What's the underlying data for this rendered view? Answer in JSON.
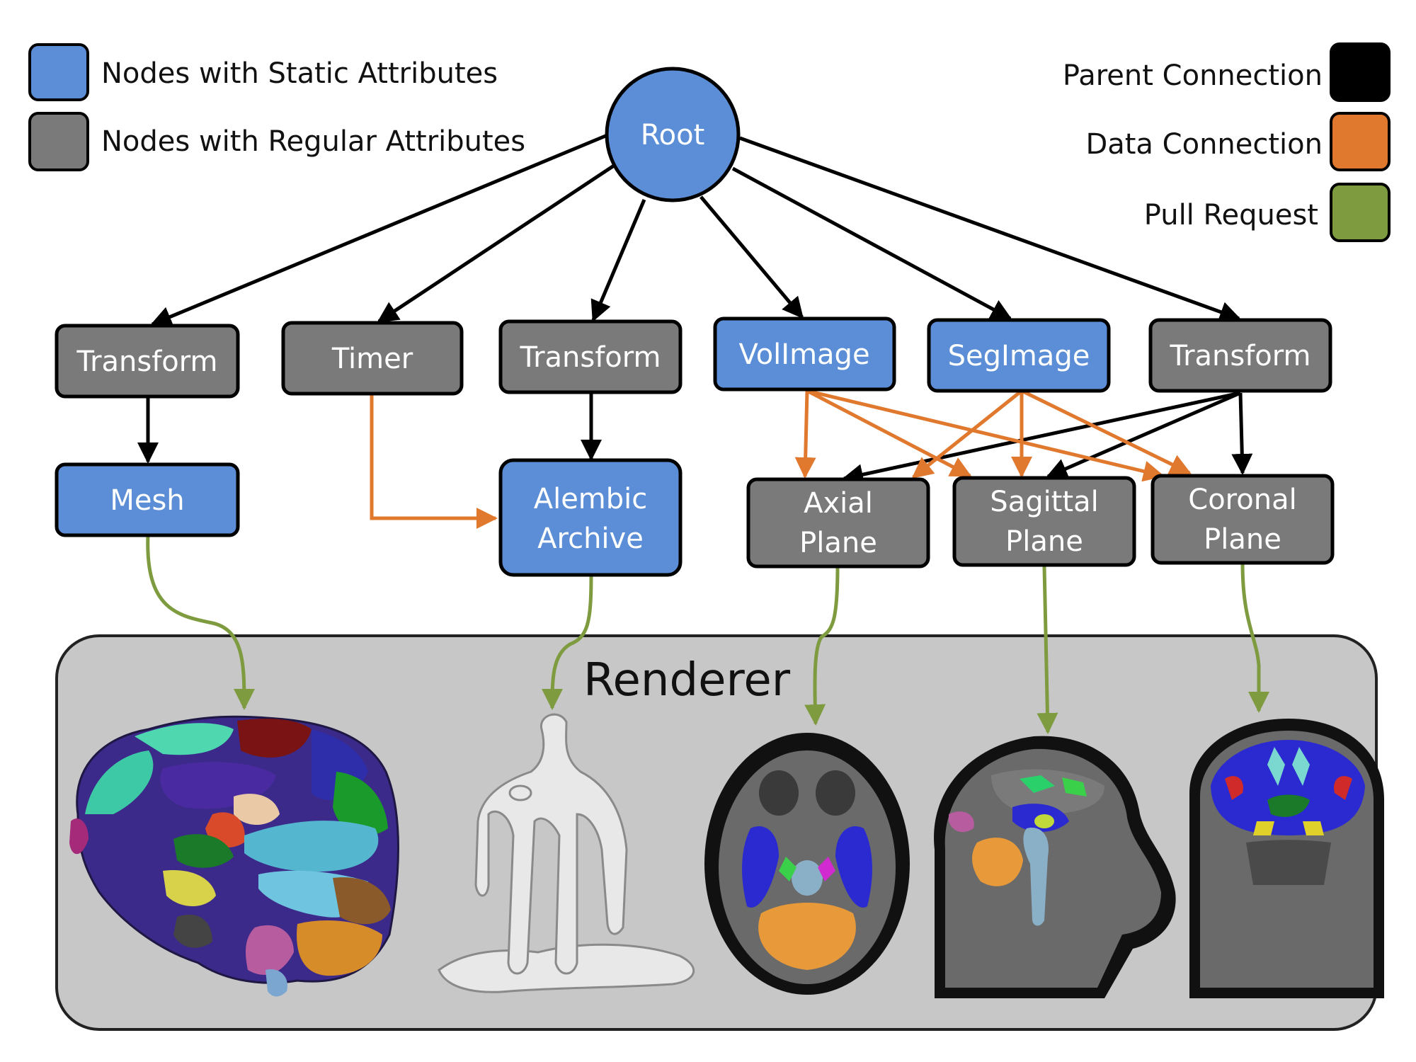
{
  "colors": {
    "static_node": "#5b8ed6",
    "regular_node": "#7a7a7a",
    "parent_connection": "#000000",
    "data_connection": "#e0782e",
    "pull_request": "#7e9b40",
    "renderer_bg": "#c7c7c7"
  },
  "legend": {
    "static_nodes": "Nodes with Static  Attributes",
    "regular_nodes": "Nodes with Regular Attributes",
    "parent_connection": "Parent Connection",
    "data_connection": "Data Connection",
    "pull_request": "Pull Request"
  },
  "nodes": {
    "root": "Root",
    "transform_1": "Transform",
    "timer": "Timer",
    "transform_2": "Transform",
    "volimage": "VolImage",
    "segimage": "SegImage",
    "transform_3": "Transform",
    "mesh": "Mesh",
    "alembic_archive": [
      "Alembic",
      "Archive"
    ],
    "axial_plane": [
      "Axial",
      "Plane"
    ],
    "sagittal_plane": [
      "Sagittal",
      "Plane"
    ],
    "coronal_plane": [
      "Coronal",
      "Plane"
    ]
  },
  "renderer": {
    "title": "Renderer",
    "thumbnails": [
      "brain-mesh-render",
      "alembic-surface-render",
      "axial-slice-image",
      "sagittal-slice-image",
      "coronal-slice-image"
    ]
  }
}
